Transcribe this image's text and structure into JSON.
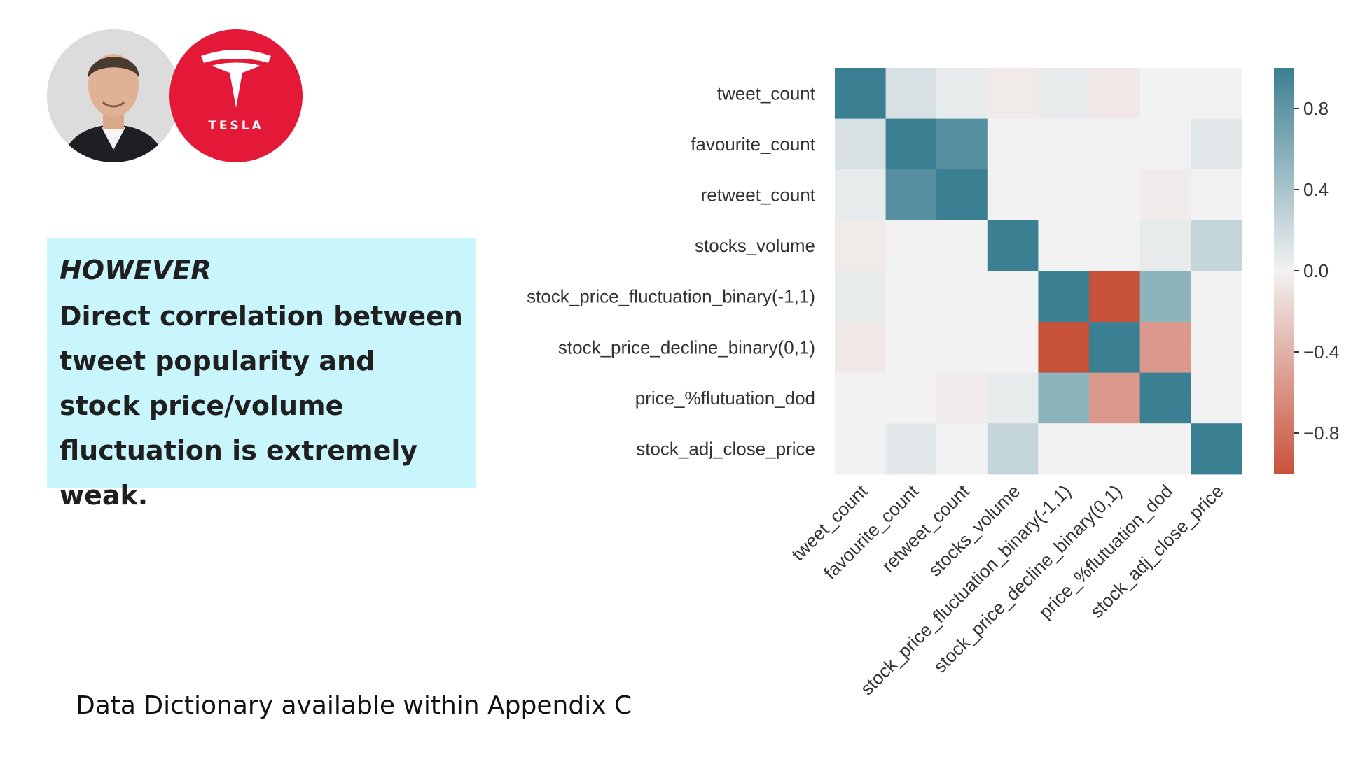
{
  "colors": {
    "positive": "#3b7f92",
    "neutral": "#f2f2f2",
    "negative": "#c8513a",
    "callout_bg": "#c9f5fc",
    "logo_bg": "#e31937"
  },
  "images": {
    "photo": "portrait-photo",
    "logo": "tesla-logo-icon",
    "logo_word": "TESLA"
  },
  "callout": {
    "heading": "HOWEVER",
    "body": "Direct correlation between tweet popularity and stock price/volume fluctuation is extremely weak."
  },
  "footnote": "Data Dictionary available within Appendix C",
  "chart_data": {
    "type": "heatmap",
    "title": "",
    "labels": [
      "tweet_count",
      "favourite_count",
      "retweet_count",
      "stocks_volume",
      "stock_price_fluctuation_binary(-1,1)",
      "stock_price_decline_binary(0,1)",
      "price_%flutuation_dod",
      "stock_adj_close_price"
    ],
    "matrix": [
      [
        1.0,
        0.15,
        0.06,
        -0.05,
        0.06,
        -0.06,
        0.0,
        0.0
      ],
      [
        0.15,
        1.0,
        0.85,
        0.0,
        0.0,
        0.0,
        0.0,
        0.08
      ],
      [
        0.06,
        0.85,
        1.0,
        0.0,
        0.0,
        0.0,
        -0.04,
        0.0
      ],
      [
        -0.05,
        0.0,
        0.0,
        1.0,
        0.0,
        0.0,
        0.06,
        0.25
      ],
      [
        0.06,
        0.0,
        0.0,
        0.0,
        1.0,
        -1.0,
        0.55,
        0.0
      ],
      [
        -0.06,
        0.0,
        0.0,
        0.0,
        -1.0,
        1.0,
        -0.55,
        0.0
      ],
      [
        0.0,
        0.0,
        -0.04,
        0.06,
        0.55,
        -0.55,
        1.0,
        0.0
      ],
      [
        0.0,
        0.08,
        0.0,
        0.25,
        0.0,
        0.0,
        0.0,
        1.0
      ]
    ],
    "colorbar": {
      "range": [
        -1.0,
        1.0
      ],
      "ticks": [
        0.8,
        0.4,
        0.0,
        -0.4,
        -0.8
      ],
      "tick_labels": [
        "0.8",
        "0.4",
        "0.0",
        "−0.4",
        "−0.8"
      ]
    }
  }
}
